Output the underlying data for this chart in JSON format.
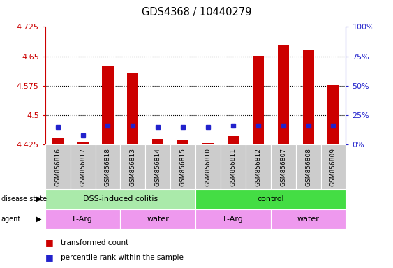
{
  "title": "GDS4368 / 10440279",
  "samples": [
    "GSM856816",
    "GSM856817",
    "GSM856818",
    "GSM856813",
    "GSM856814",
    "GSM856815",
    "GSM856810",
    "GSM856811",
    "GSM856812",
    "GSM856807",
    "GSM856808",
    "GSM856809"
  ],
  "red_values": [
    4.441,
    4.432,
    4.627,
    4.609,
    4.439,
    4.437,
    4.43,
    4.447,
    4.651,
    4.68,
    4.666,
    4.577
  ],
  "blue_values_pct": [
    15,
    8,
    16,
    16,
    15,
    15,
    15,
    16,
    16,
    16,
    16,
    16
  ],
  "y_min": 4.425,
  "y_max": 4.725,
  "y_ticks_left": [
    4.425,
    4.5,
    4.575,
    4.65,
    4.725
  ],
  "y_ticks_right_pct": [
    0,
    25,
    50,
    75,
    100
  ],
  "dotted_lines": [
    4.5,
    4.575,
    4.65
  ],
  "bar_color": "#cc0000",
  "blue_color": "#2222cc",
  "bar_bottom": 4.425,
  "bar_width": 0.45,
  "disease_state_groups": [
    {
      "label": "DSS-induced colitis",
      "start": 0,
      "end": 6,
      "color": "#aaeaaa"
    },
    {
      "label": "control",
      "start": 6,
      "end": 12,
      "color": "#44dd44"
    }
  ],
  "agent_groups": [
    {
      "label": "L-Arg",
      "start": 0,
      "end": 3,
      "color": "#ee99ee"
    },
    {
      "label": "water",
      "start": 3,
      "end": 6,
      "color": "#ee99ee"
    },
    {
      "label": "L-Arg",
      "start": 6,
      "end": 9,
      "color": "#ee99ee"
    },
    {
      "label": "water",
      "start": 9,
      "end": 12,
      "color": "#ee99ee"
    }
  ],
  "legend_items": [
    {
      "label": "transformed count",
      "color": "#cc0000"
    },
    {
      "label": "percentile rank within the sample",
      "color": "#2222cc"
    }
  ],
  "left_axis_color": "#cc0000",
  "right_axis_color": "#2222cc",
  "bg_color": "#ffffff",
  "xtick_bg_color": "#cccccc",
  "fig_width": 5.63,
  "fig_height": 3.84,
  "dpi": 100
}
